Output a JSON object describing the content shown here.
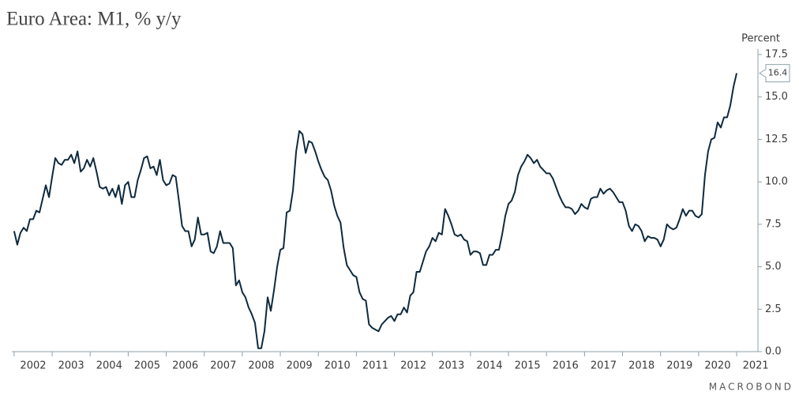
{
  "chart_data": {
    "type": "line",
    "title": "Euro Area: M1, % y/y",
    "y_label": "Percent",
    "source": "MACROBOND",
    "color": "#0f2a3d",
    "last_label": "16.4",
    "xlim": [
      2001.94,
      2021.56
    ],
    "xticks": [
      2002,
      2003,
      2004,
      2005,
      2006,
      2007,
      2008,
      2009,
      2010,
      2011,
      2012,
      2013,
      2014,
      2015,
      2016,
      2017,
      2018,
      2019,
      2020,
      2021
    ],
    "ylim": [
      0,
      17.5
    ],
    "yticks": [
      {
        "value": 0,
        "label": "0.0"
      },
      2.5,
      {
        "value": 5,
        "label": "5.0"
      },
      7.5,
      {
        "value": 10,
        "label": "10.0"
      },
      12.5,
      {
        "value": 15,
        "label": "15.0"
      },
      17.5
    ],
    "x": [
      2002,
      2002.083,
      2002.167,
      2002.25,
      2002.333,
      2002.417,
      2002.5,
      2002.583,
      2002.667,
      2002.75,
      2002.833,
      2002.917,
      2003,
      2003.083,
      2003.167,
      2003.25,
      2003.333,
      2003.417,
      2003.5,
      2003.583,
      2003.667,
      2003.75,
      2003.833,
      2003.917,
      2004,
      2004.083,
      2004.167,
      2004.25,
      2004.333,
      2004.417,
      2004.5,
      2004.583,
      2004.667,
      2004.75,
      2004.833,
      2004.917,
      2005,
      2005.083,
      2005.167,
      2005.25,
      2005.333,
      2005.417,
      2005.5,
      2005.583,
      2005.667,
      2005.75,
      2005.833,
      2005.917,
      2006,
      2006.083,
      2006.167,
      2006.25,
      2006.333,
      2006.417,
      2006.5,
      2006.583,
      2006.667,
      2006.75,
      2006.833,
      2006.917,
      2007,
      2007.083,
      2007.167,
      2007.25,
      2007.333,
      2007.417,
      2007.5,
      2007.583,
      2007.667,
      2007.75,
      2007.833,
      2007.917,
      2008,
      2008.083,
      2008.167,
      2008.25,
      2008.333,
      2008.417,
      2008.5,
      2008.583,
      2008.667,
      2008.75,
      2008.833,
      2008.917,
      2009,
      2009.083,
      2009.167,
      2009.25,
      2009.333,
      2009.417,
      2009.5,
      2009.583,
      2009.667,
      2009.75,
      2009.833,
      2009.917,
      2010,
      2010.083,
      2010.167,
      2010.25,
      2010.333,
      2010.417,
      2010.5,
      2010.583,
      2010.667,
      2010.75,
      2010.833,
      2010.917,
      2011,
      2011.083,
      2011.167,
      2011.25,
      2011.333,
      2011.417,
      2011.5,
      2011.583,
      2011.667,
      2011.75,
      2011.833,
      2011.917,
      2012,
      2012.083,
      2012.167,
      2012.25,
      2012.333,
      2012.417,
      2012.5,
      2012.583,
      2012.667,
      2012.75,
      2012.833,
      2012.917,
      2013,
      2013.083,
      2013.167,
      2013.25,
      2013.333,
      2013.417,
      2013.5,
      2013.583,
      2013.667,
      2013.75,
      2013.833,
      2013.917,
      2014,
      2014.083,
      2014.167,
      2014.25,
      2014.333,
      2014.417,
      2014.5,
      2014.583,
      2014.667,
      2014.75,
      2014.833,
      2014.917,
      2015,
      2015.083,
      2015.167,
      2015.25,
      2015.333,
      2015.417,
      2015.5,
      2015.583,
      2015.667,
      2015.75,
      2015.833,
      2015.917,
      2016,
      2016.083,
      2016.167,
      2016.25,
      2016.333,
      2016.417,
      2016.5,
      2016.583,
      2016.667,
      2016.75,
      2016.833,
      2016.917,
      2017,
      2017.083,
      2017.167,
      2017.25,
      2017.333,
      2017.417,
      2017.5,
      2017.583,
      2017.667,
      2017.75,
      2017.833,
      2017.917,
      2018,
      2018.083,
      2018.167,
      2018.25,
      2018.333,
      2018.417,
      2018.5,
      2018.583,
      2018.667,
      2018.75,
      2018.833,
      2018.917,
      2019,
      2019.083,
      2019.167,
      2019.25,
      2019.333,
      2019.417,
      2019.5,
      2019.583,
      2019.667,
      2019.75,
      2019.833,
      2019.917,
      2020,
      2020.083,
      2020.167,
      2020.25,
      2020.333,
      2020.417,
      2020.5,
      2020.583,
      2020.667,
      2020.75,
      2020.833,
      2020.917,
      2021
    ],
    "values": [
      7.1,
      6.3,
      7.0,
      7.3,
      7.1,
      7.8,
      7.8,
      8.3,
      8.2,
      9.0,
      9.8,
      9.1,
      10.3,
      11.4,
      11.1,
      11.0,
      11.3,
      11.3,
      11.6,
      11.1,
      11.8,
      10.6,
      10.8,
      11.3,
      10.9,
      11.4,
      10.6,
      9.7,
      9.6,
      9.7,
      9.2,
      9.6,
      9.1,
      9.8,
      8.7,
      9.8,
      10.0,
      9.1,
      9.1,
      10.1,
      10.7,
      11.4,
      11.5,
      10.8,
      10.9,
      10.4,
      11.3,
      10.1,
      9.8,
      9.9,
      10.4,
      10.3,
      8.9,
      7.4,
      7.1,
      7.1,
      6.2,
      6.6,
      7.9,
      6.9,
      6.9,
      7.0,
      5.9,
      5.8,
      6.2,
      7.1,
      6.4,
      6.4,
      6.4,
      6.1,
      3.9,
      4.2,
      3.5,
      3.2,
      2.6,
      2.2,
      1.7,
      0.2,
      0.2,
      1.2,
      3.2,
      2.4,
      3.6,
      5.0,
      6.0,
      6.1,
      8.2,
      8.3,
      9.5,
      11.8,
      13.0,
      12.8,
      11.7,
      12.4,
      12.3,
      11.8,
      11.2,
      10.7,
      10.3,
      10.1,
      9.5,
      8.6,
      8.0,
      7.6,
      6.1,
      5.1,
      4.8,
      4.5,
      4.4,
      3.5,
      3.1,
      3.0,
      1.6,
      1.4,
      1.3,
      1.2,
      1.6,
      1.8,
      2.0,
      2.1,
      1.8,
      2.2,
      2.2,
      2.6,
      2.3,
      3.3,
      3.5,
      4.7,
      4.7,
      5.3,
      5.9,
      6.2,
      6.7,
      6.5,
      7.0,
      6.9,
      8.4,
      8.0,
      7.5,
      6.9,
      6.8,
      6.9,
      6.6,
      6.5,
      5.7,
      5.9,
      5.9,
      5.8,
      5.1,
      5.1,
      5.7,
      5.7,
      6.0,
      6.0,
      6.9,
      8.0,
      8.7,
      8.9,
      9.4,
      10.4,
      10.9,
      11.2,
      11.6,
      11.4,
      11.1,
      11.3,
      10.9,
      10.7,
      10.5,
      10.5,
      10.2,
      9.7,
      9.2,
      8.8,
      8.5,
      8.5,
      8.4,
      8.1,
      8.3,
      8.7,
      8.5,
      8.4,
      9.0,
      9.1,
      9.1,
      9.6,
      9.3,
      9.5,
      9.6,
      9.4,
      9.1,
      8.8,
      8.8,
      8.3,
      7.4,
      7.1,
      7.5,
      7.4,
      7.1,
      6.5,
      6.8,
      6.7,
      6.7,
      6.6,
      6.2,
      6.6,
      7.5,
      7.3,
      7.2,
      7.3,
      7.8,
      8.4,
      8.0,
      8.3,
      8.3,
      8.0,
      7.9,
      8.1,
      10.4,
      11.8,
      12.5,
      12.6,
      13.5,
      13.2,
      13.8,
      13.8,
      14.5,
      15.6,
      16.4
    ]
  }
}
